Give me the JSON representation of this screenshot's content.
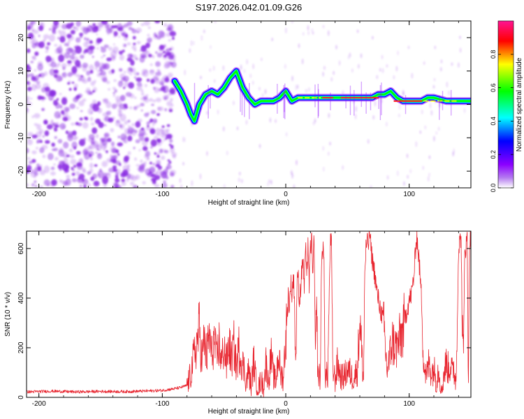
{
  "chart_data": [
    {
      "type": "heatmap",
      "title": "S197.2026.042.01.09.G26",
      "xlabel": "Height of straight line (km)",
      "ylabel": "Frequency (Hz)",
      "xlim": [
        -210,
        150
      ],
      "ylim": [
        -25,
        25
      ],
      "xticks": [
        -200,
        -100,
        0,
        100
      ],
      "yticks": [
        -20,
        -10,
        0,
        10,
        20
      ],
      "xtick_labels": [
        "-200",
        "-100",
        "0",
        "100"
      ],
      "ytick_labels": [
        "-20",
        "-10",
        "0",
        "10",
        "20"
      ],
      "signal_track": {
        "x": [
          -90,
          -85,
          -80,
          -77,
          -74,
          -70,
          -65,
          -60,
          -55,
          -50,
          -45,
          -40,
          -35,
          -30,
          -25,
          -20,
          -15,
          -10,
          -5,
          0,
          5,
          10,
          20,
          30,
          40,
          50,
          60,
          70,
          75,
          80,
          85,
          90,
          95,
          100,
          105,
          110,
          115,
          120,
          130,
          140,
          150
        ],
        "y": [
          7,
          4,
          0,
          -3,
          -5,
          0,
          3,
          4,
          3,
          5,
          8,
          10,
          5,
          2,
          0,
          1,
          1,
          1,
          2,
          4,
          1,
          2,
          2,
          2,
          2,
          2,
          2,
          2,
          3,
          3,
          4,
          2,
          1,
          1,
          1,
          1,
          2,
          2,
          1,
          1,
          1
        ]
      },
      "colorbar": {
        "label": "Normalized spectral amplitude",
        "range": [
          0,
          1
        ],
        "ticks": [
          0.0,
          0.2,
          0.4,
          0.6,
          0.8
        ],
        "tick_labels": [
          "0.0",
          "0.2",
          "0.4",
          "0.6",
          "0.8"
        ],
        "colors": [
          "#ffffff",
          "#8b00ff",
          "#0000ff",
          "#00ffff",
          "#00ff00",
          "#ffff00",
          "#ff0000",
          "#ff1493"
        ]
      },
      "noise_region_x": [
        -210,
        -90
      ],
      "noise_color": "#8a2be2"
    },
    {
      "type": "line",
      "title": "",
      "xlabel": "Height of straight line (km)",
      "ylabel": "SNR (10 * v/v)",
      "xlim": [
        -210,
        150
      ],
      "ylim": [
        0,
        670
      ],
      "xticks": [
        -200,
        -100,
        0,
        100
      ],
      "yticks": [
        0,
        200,
        400,
        600
      ],
      "xtick_labels": [
        "-200",
        "-100",
        "0",
        "100"
      ],
      "ytick_labels": [
        "0",
        "200",
        "400",
        "600"
      ],
      "line_color": "#e8242e",
      "series": [
        {
          "name": "SNR",
          "x": [
            -210,
            -190,
            -170,
            -150,
            -130,
            -110,
            -100,
            -90,
            -85,
            -80,
            -77,
            -75,
            -72,
            -70,
            -68,
            -66,
            -64,
            -62,
            -60,
            -58,
            -56,
            -54,
            -52,
            -50,
            -48,
            -46,
            -44,
            -42,
            -40,
            -38,
            -36,
            -34,
            -32,
            -30,
            -28,
            -26,
            -24,
            -22,
            -20,
            -18,
            -16,
            -14,
            -12,
            -10,
            -8,
            -6,
            -4,
            -2,
            0,
            1,
            2,
            3,
            4,
            5,
            6,
            7,
            8,
            9,
            10,
            11,
            12,
            14,
            15,
            16,
            17,
            18,
            19,
            20,
            21,
            22,
            23,
            24,
            25,
            26,
            28,
            29,
            30,
            31,
            32,
            34,
            36,
            37,
            38,
            40,
            41,
            42,
            44,
            46,
            48,
            50,
            52,
            54,
            56,
            58,
            60,
            62,
            63,
            64,
            65,
            66,
            67,
            68,
            69,
            70,
            72,
            74,
            76,
            78,
            80,
            82,
            84,
            86,
            88,
            90,
            92,
            94,
            96,
            98,
            100,
            102,
            104,
            106,
            108,
            110,
            112,
            114,
            116,
            118,
            120,
            122,
            124,
            126,
            128,
            130,
            132,
            134,
            135,
            136,
            138,
            140,
            142,
            143,
            144,
            145,
            146,
            147,
            148,
            149,
            150
          ],
          "y": [
            22,
            25,
            22,
            24,
            23,
            26,
            28,
            35,
            40,
            48,
            90,
            150,
            220,
            280,
            150,
            230,
            160,
            250,
            170,
            230,
            150,
            220,
            140,
            210,
            130,
            220,
            150,
            210,
            120,
            200,
            150,
            120,
            60,
            110,
            40,
            150,
            60,
            40,
            70,
            40,
            140,
            60,
            170,
            90,
            60,
            180,
            90,
            80,
            250,
            300,
            420,
            350,
            470,
            410,
            480,
            430,
            120,
            420,
            510,
            380,
            440,
            570,
            430,
            620,
            460,
            640,
            450,
            600,
            630,
            510,
            640,
            130,
            380,
            90,
            80,
            560,
            600,
            540,
            80,
            90,
            610,
            640,
            120,
            70,
            100,
            140,
            90,
            80,
            90,
            110,
            100,
            80,
            90,
            110,
            320,
            140,
            70,
            500,
            600,
            630,
            620,
            660,
            600,
            560,
            500,
            420,
            370,
            330,
            250,
            110,
            150,
            230,
            210,
            200,
            230,
            250,
            300,
            350,
            390,
            420,
            500,
            660,
            550,
            400,
            130,
            80,
            140,
            100,
            120,
            60,
            130,
            20,
            90,
            140,
            110,
            140,
            90,
            120,
            60,
            600,
            650,
            280,
            140,
            620,
            600,
            650,
            90,
            650,
            620
          ]
        }
      ]
    }
  ]
}
